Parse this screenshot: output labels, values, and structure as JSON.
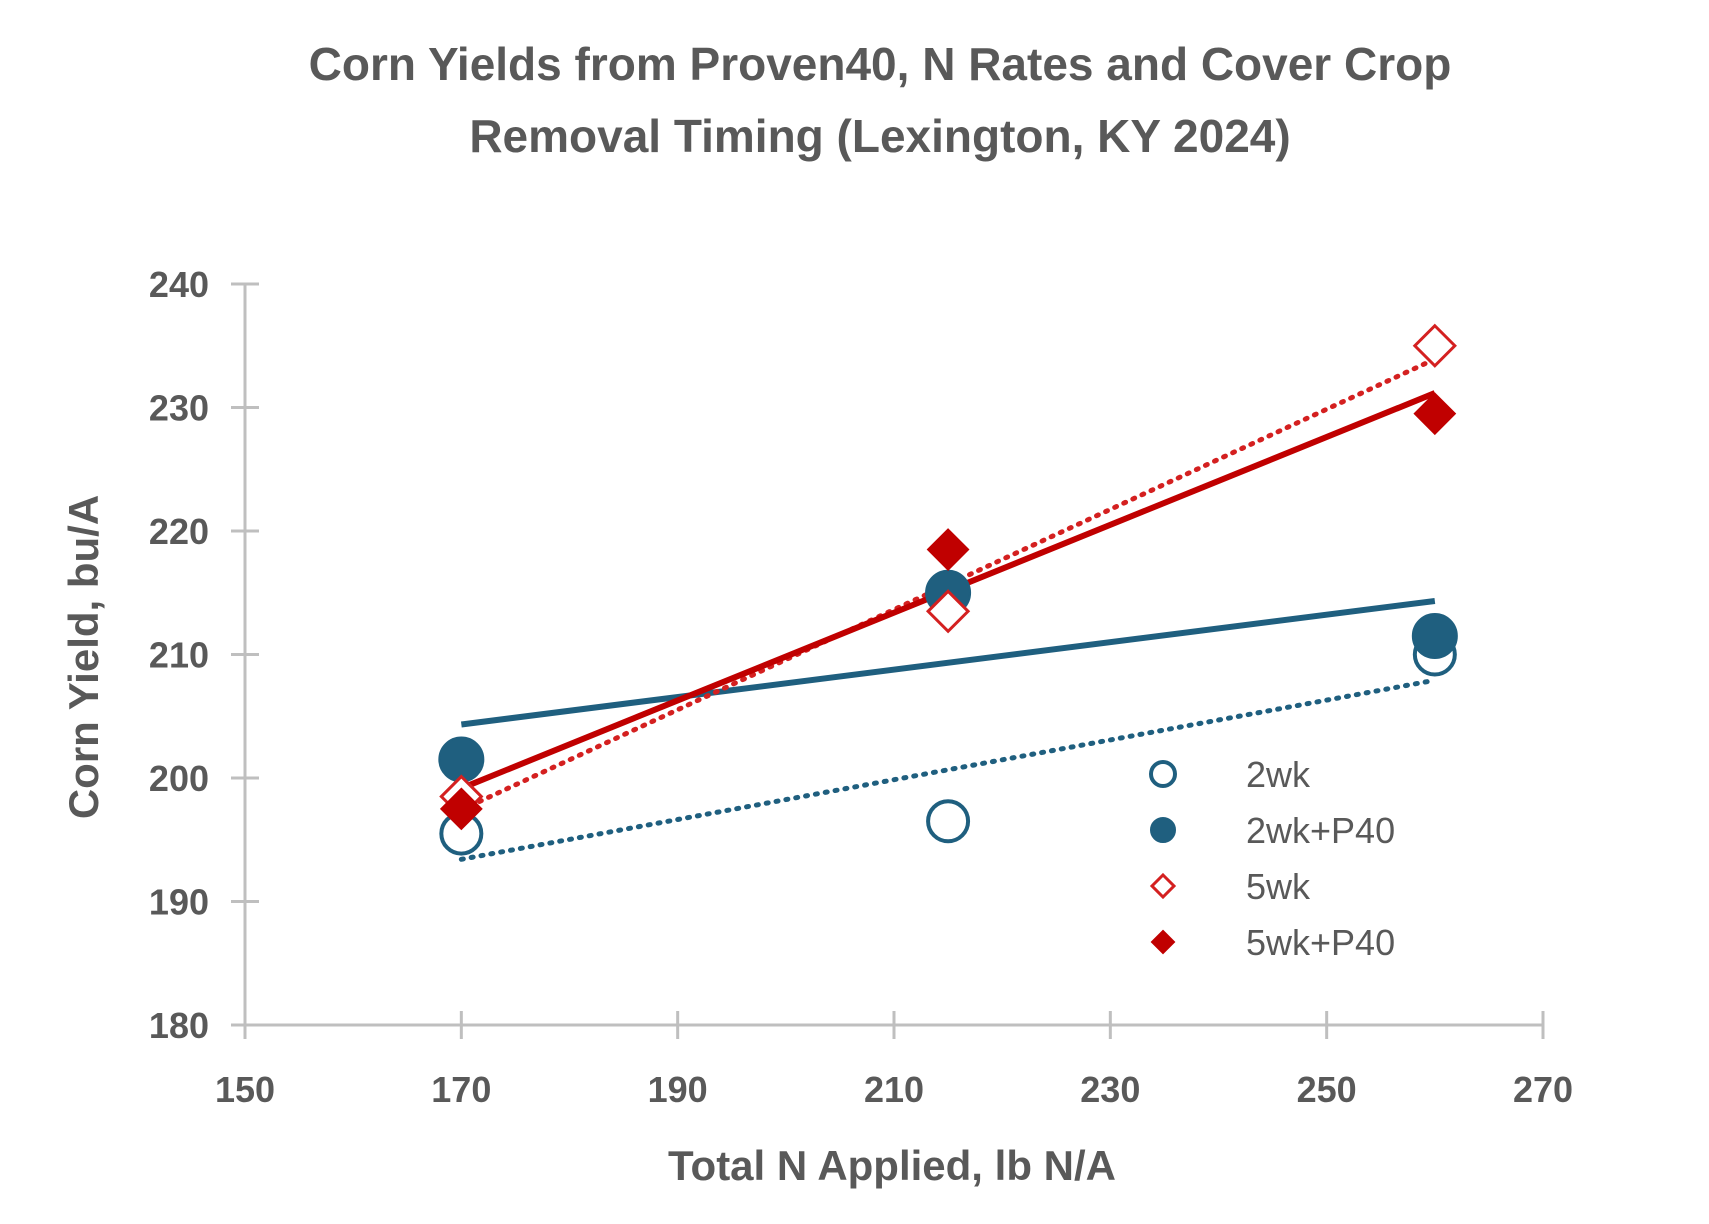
{
  "chart_data": {
    "type": "scatter",
    "title_lines": [
      "Corn Yields from Proven40, N Rates and Cover Crop",
      "Removal Timing (Lexington, KY 2024)"
    ],
    "xlabel": "Total N Applied, lb N/A",
    "ylabel": "Corn Yield, bu/A",
    "xlim": [
      150,
      270
    ],
    "ylim": [
      180,
      240
    ],
    "xticks": [
      150,
      170,
      190,
      210,
      230,
      250,
      270
    ],
    "yticks": [
      180,
      190,
      200,
      210,
      220,
      230,
      240
    ],
    "grid": false,
    "legend_position": "right-center inside plot",
    "series": [
      {
        "name": "2wk",
        "color": "#1f5f7f",
        "marker": "circle-open",
        "trendline": "dotted",
        "x": [
          170,
          215,
          260
        ],
        "y": [
          195.5,
          196.5,
          210
        ]
      },
      {
        "name": "2wk+P40",
        "color": "#1f5f7f",
        "marker": "circle-filled",
        "trendline": "solid",
        "x": [
          170,
          215,
          260
        ],
        "y": [
          201.5,
          215,
          211.5
        ]
      },
      {
        "name": "5wk",
        "color": "#d42020",
        "marker": "diamond-open",
        "trendline": "dotted",
        "x": [
          170,
          215,
          260
        ],
        "y": [
          198.5,
          213.5,
          235
        ]
      },
      {
        "name": "5wk+P40",
        "color": "#c00000",
        "marker": "diamond-filled",
        "trendline": "solid",
        "x": [
          170,
          215,
          260
        ],
        "y": [
          197.5,
          218.5,
          229.5
        ]
      }
    ]
  }
}
